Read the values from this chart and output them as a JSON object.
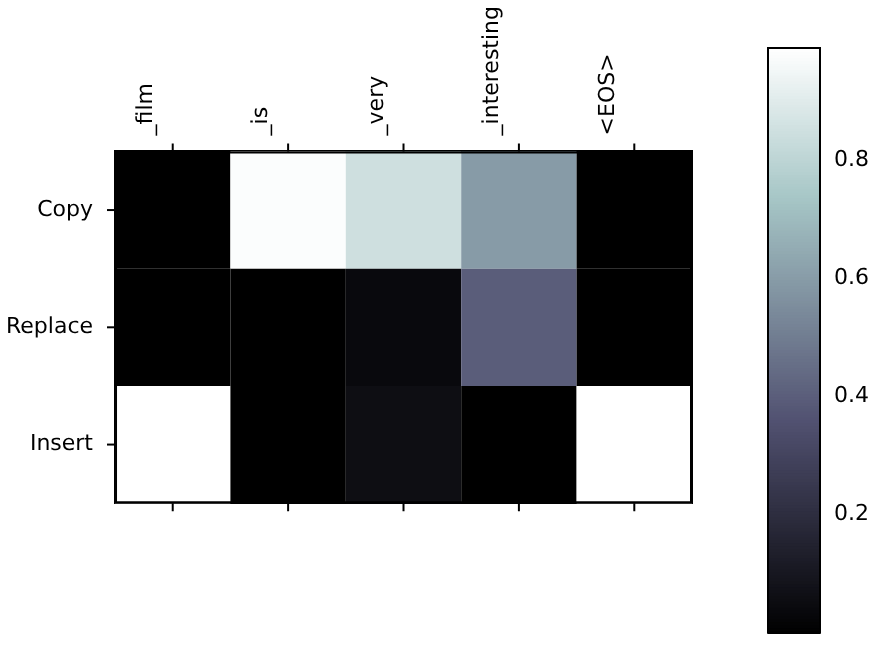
{
  "chart_data": {
    "type": "heatmap",
    "categories": [
      "_film",
      "_is",
      "_very",
      "_interesting",
      "<EOS>"
    ],
    "y_categories": [
      "Copy",
      "Replace",
      "Insert"
    ],
    "cells": [
      [
        0.0,
        0.98,
        0.85,
        0.6,
        0.0
      ],
      [
        0.0,
        0.0,
        0.04,
        0.4,
        0.0
      ],
      [
        0.99,
        0.0,
        0.06,
        0.0,
        0.99
      ]
    ],
    "clim": [
      0.0,
      0.99
    ],
    "cticks": [
      0.2,
      0.4,
      0.6,
      0.8
    ]
  }
}
